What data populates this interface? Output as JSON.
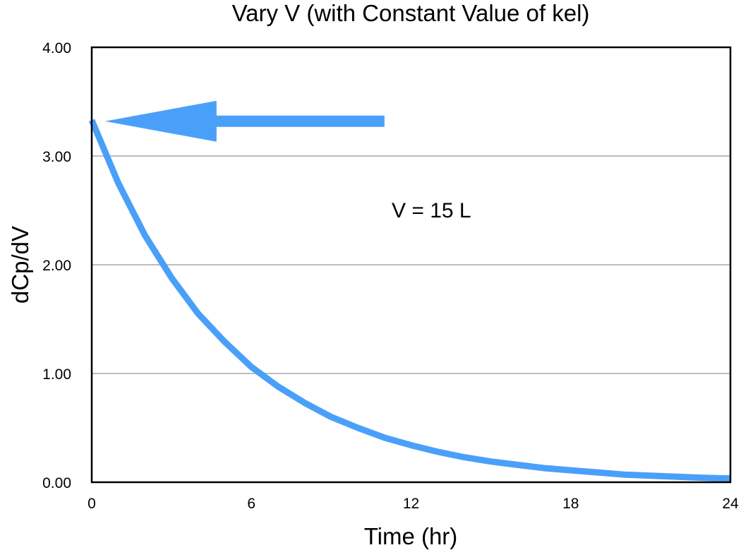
{
  "chart_data": {
    "type": "line",
    "title": "Vary V (with Constant Value of kel)",
    "xlabel": "Time (hr)",
    "ylabel": "dCp/dV",
    "xlim": [
      0,
      24
    ],
    "ylim": [
      0,
      4
    ],
    "x_ticks": [
      0,
      6,
      12,
      18,
      24
    ],
    "x_tick_labels": [
      "0",
      "6",
      "12",
      "18",
      "24"
    ],
    "y_ticks": [
      0,
      1,
      2,
      3,
      4
    ],
    "y_tick_labels": [
      "0.00",
      "1.00",
      "2.00",
      "3.00",
      "4.00"
    ],
    "grid": "horizontal",
    "legend": "none",
    "series": [
      {
        "name": "dCp/dV (V = 15 L)",
        "color": "#4AA0F8",
        "x": [
          0,
          1,
          2,
          3,
          4,
          5,
          6,
          7,
          8,
          9,
          10,
          11,
          12,
          13,
          14,
          15,
          16,
          17,
          18,
          19,
          20,
          21,
          22,
          23,
          24
        ],
        "values": [
          3.33,
          2.75,
          2.27,
          1.88,
          1.55,
          1.29,
          1.06,
          0.88,
          0.73,
          0.6,
          0.5,
          0.41,
          0.34,
          0.28,
          0.23,
          0.19,
          0.16,
          0.13,
          0.11,
          0.09,
          0.07,
          0.06,
          0.05,
          0.04,
          0.035
        ]
      }
    ],
    "annotations": [
      {
        "text": "V = 15 L",
        "x": 12,
        "y": 2.5
      },
      {
        "type": "arrow",
        "direction": "left",
        "color": "#4AA0F8",
        "from": [
          11,
          3.32
        ],
        "to": [
          0.5,
          3.32
        ],
        "points_to": "y-intercept"
      }
    ]
  }
}
